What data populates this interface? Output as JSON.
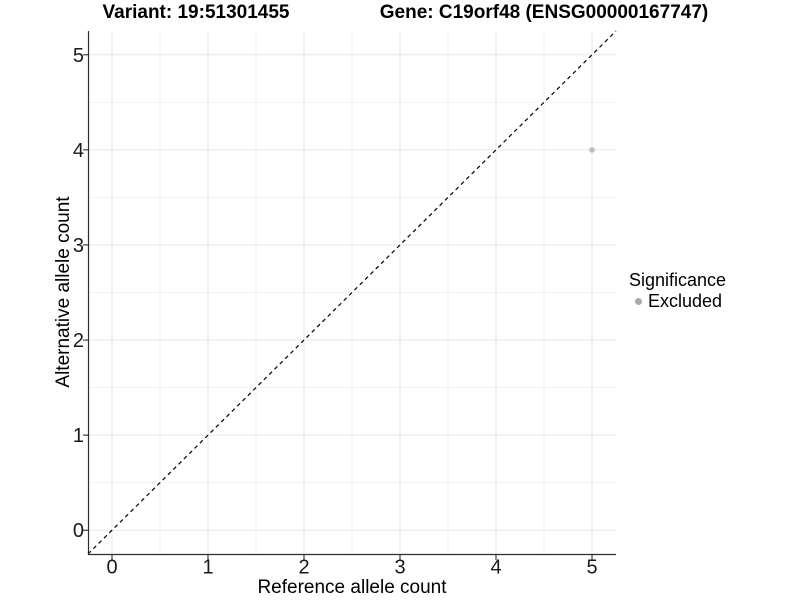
{
  "titles": {
    "variant": "Variant: 19:51301455",
    "gene": "Gene: C19orf48 (ENSG00000167747)"
  },
  "axes": {
    "x_label": "Reference allele count",
    "y_label": "Alternative allele count"
  },
  "legend": {
    "title": "Significance",
    "items": [
      {
        "label": "Excluded",
        "color": "#aaaaaa"
      }
    ]
  },
  "colors": {
    "background": "#ffffff",
    "major_grid": "#e7e7e7",
    "minor_grid": "#f2f2f2",
    "axis_line": "#2d2d2d",
    "tick_text": "#1a1a1a",
    "point": "#bfbfbf",
    "identity_line": "#000000"
  },
  "chart_data": {
    "type": "scatter",
    "title": "Variant: 19:51301455    Gene: C19orf48 (ENSG00000167747)",
    "xlabel": "Reference allele count",
    "ylabel": "Alternative allele count",
    "x_ticks": [
      0,
      1,
      2,
      3,
      4,
      5
    ],
    "y_ticks": [
      0,
      1,
      2,
      3,
      4,
      5
    ],
    "xlim": [
      -0.25,
      5.25
    ],
    "ylim": [
      -0.25,
      5.25
    ],
    "grid": "major and minor, light grey on white",
    "legend_position": "right",
    "series": [
      {
        "name": "Excluded",
        "points": [
          [
            5,
            4
          ]
        ],
        "color": "#bfbfbf",
        "marker": "circle",
        "marker_radius_px": 2.8
      }
    ],
    "reference_line": {
      "equation": "y = x",
      "style": "dashed",
      "color": "#000000"
    }
  }
}
